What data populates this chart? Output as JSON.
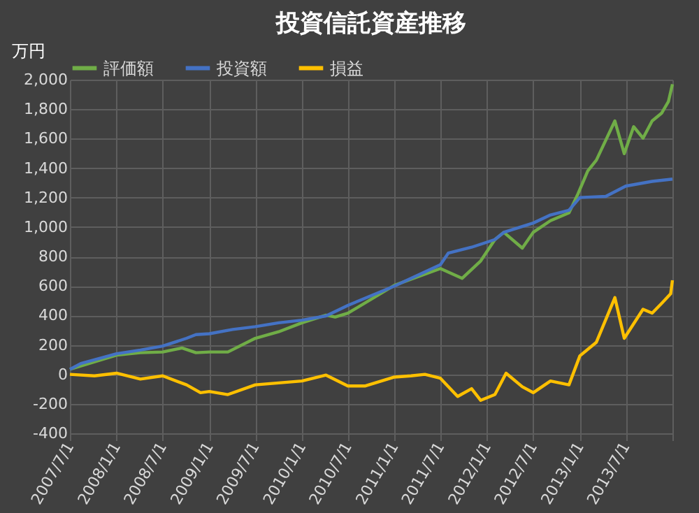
{
  "chart_data": {
    "type": "line",
    "title": "投資信託資産推移",
    "ylabel": "万円",
    "xlim": [
      "2007-07-01",
      "2014-01-01"
    ],
    "xticks": [
      {
        "value": "2007-07-01",
        "label": "2007/7/1"
      },
      {
        "value": "2008-01-01",
        "label": "2008/1/1"
      },
      {
        "value": "2008-07-01",
        "label": "2008/7/1"
      },
      {
        "value": "2009-01-01",
        "label": "2009/1/1"
      },
      {
        "value": "2009-07-01",
        "label": "2009/7/1"
      },
      {
        "value": "2010-01-01",
        "label": "2010/1/1"
      },
      {
        "value": "2010-07-01",
        "label": "2010/7/1"
      },
      {
        "value": "2011-01-01",
        "label": "2011/1/1"
      },
      {
        "value": "2011-07-01",
        "label": "2011/7/1"
      },
      {
        "value": "2012-01-01",
        "label": "2012/1/1"
      },
      {
        "value": "2012-07-01",
        "label": "2012/7/1"
      },
      {
        "value": "2013-01-01",
        "label": "2013/1/1"
      },
      {
        "value": "2013-07-01",
        "label": "2013/7/1"
      },
      {
        "value": "2014-01-01",
        "label": null
      }
    ],
    "ylim": [
      -400,
      2000
    ],
    "yticks": [
      {
        "value": -400,
        "label": "-400"
      },
      {
        "value": -200,
        "label": "-200"
      },
      {
        "value": 0,
        "label": "0"
      },
      {
        "value": 200,
        "label": "200"
      },
      {
        "value": 400,
        "label": "400"
      },
      {
        "value": 600,
        "label": "600"
      },
      {
        "value": 800,
        "label": "800"
      },
      {
        "value": 1000,
        "label": "1,000"
      },
      {
        "value": 1200,
        "label": "1,200"
      },
      {
        "value": 1400,
        "label": "1,400"
      },
      {
        "value": 1600,
        "label": "1,600"
      },
      {
        "value": 1800,
        "label": "1,800"
      },
      {
        "value": 2000,
        "label": "2,000"
      }
    ],
    "grid": true,
    "legend": "top",
    "line_style": "solid",
    "marker": "none",
    "series": [
      {
        "name": "評価額",
        "color": "#70ad47",
        "x": [
          "2007-07-01",
          "2008-01-01",
          "2008-04-04",
          "2008-07-01",
          "2008-09-15",
          "2008-11-09",
          "2009-01-01",
          "2009-03-15",
          "2009-07-01",
          "2009-10-01",
          "2010-01-01",
          "2010-04-06",
          "2010-05-12",
          "2010-07-01",
          "2011-01-01",
          "2011-07-01",
          "2011-09-25",
          "2011-12-07",
          "2012-02-01",
          "2012-03-07",
          "2012-05-19",
          "2012-07-01",
          "2012-09-07",
          "2012-11-19",
          "2012-12-25",
          "2013-02-01",
          "2013-03-07",
          "2013-05-19",
          "2013-06-25",
          "2013-08-01",
          "2013-09-07",
          "2013-10-13",
          "2013-11-19",
          "2013-12-16",
          "2014-01-01"
        ],
        "values": [
          34,
          131,
          147,
          152,
          179,
          147,
          152,
          152,
          245,
          289,
          350,
          402,
          389,
          415,
          605,
          718,
          652,
          770,
          915,
          964,
          857,
          964,
          1043,
          1096,
          1227,
          1380,
          1454,
          1720,
          1498,
          1681,
          1603,
          1720,
          1772,
          1851,
          1969
        ]
      },
      {
        "name": "投資額",
        "color": "#4472c4",
        "x": [
          "2007-07-01",
          "2007-08-13",
          "2008-01-01",
          "2008-04-04",
          "2008-07-01",
          "2008-10-03",
          "2008-11-09",
          "2009-01-01",
          "2009-04-03",
          "2009-07-01",
          "2009-10-01",
          "2010-01-01",
          "2010-04-06",
          "2010-07-01",
          "2011-01-01",
          "2011-07-01",
          "2011-08-01",
          "2011-11-01",
          "2012-02-01",
          "2012-03-07",
          "2012-07-01",
          "2012-09-07",
          "2012-11-19",
          "2013-01-01",
          "2013-04-13",
          "2013-07-01",
          "2013-10-13",
          "2014-01-01"
        ],
        "values": [
          34,
          74,
          140,
          165,
          192,
          245,
          270,
          276,
          305,
          324,
          350,
          368,
          397,
          468,
          600,
          744,
          823,
          863,
          915,
          964,
          1027,
          1082,
          1114,
          1200,
          1208,
          1278,
          1310,
          1325
        ]
      },
      {
        "name": "損益",
        "color": "#ffc000",
        "x": [
          "2007-07-01",
          "2007-10-06",
          "2008-01-01",
          "2008-04-04",
          "2008-07-01",
          "2008-10-03",
          "2008-11-27",
          "2009-01-01",
          "2009-03-15",
          "2009-07-01",
          "2009-10-01",
          "2010-01-01",
          "2010-04-06",
          "2010-07-01",
          "2010-09-06",
          "2011-01-01",
          "2011-03-07",
          "2011-05-01",
          "2011-07-01",
          "2011-09-07",
          "2011-11-01",
          "2011-12-07",
          "2012-02-01",
          "2012-03-16",
          "2012-05-19",
          "2012-07-01",
          "2012-09-07",
          "2012-11-19",
          "2013-01-01",
          "2013-03-07",
          "2013-05-19",
          "2013-06-25",
          "2013-09-07",
          "2013-10-13",
          "2013-11-19",
          "2013-12-25",
          "2014-01-01"
        ],
        "values": [
          0,
          -10,
          8,
          -32,
          -10,
          -71,
          -124,
          -116,
          -137,
          -71,
          -58,
          -45,
          -5,
          -79,
          -79,
          -18,
          -10,
          0,
          -26,
          -150,
          -97,
          -176,
          -137,
          8,
          -84,
          -124,
          -45,
          -71,
          126,
          218,
          521,
          245,
          442,
          416,
          481,
          547,
          639
        ]
      }
    ]
  }
}
